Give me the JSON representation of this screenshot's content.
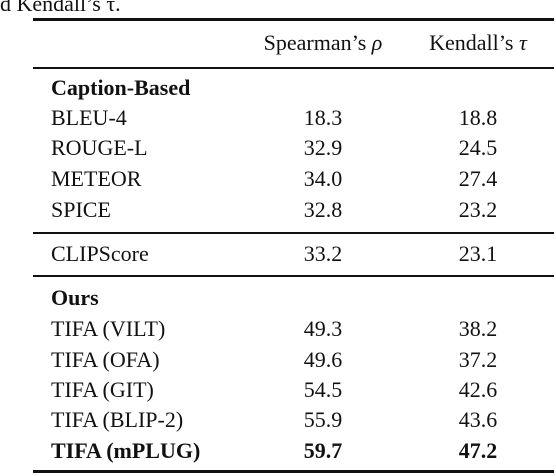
{
  "caption_fragment": "d Kendall’s τ.",
  "table": {
    "header": {
      "spearman_label": "Spearman’s",
      "spearman_symbol": "ρ",
      "kendall_label": "Kendall’s",
      "kendall_symbol": "τ"
    },
    "groups": [
      {
        "title": "Caption-Based",
        "rows": [
          {
            "name": "BLEU-4",
            "spearman": "18.3",
            "kendall": "18.8"
          },
          {
            "name": "ROUGE-L",
            "spearman": "32.9",
            "kendall": "24.5"
          },
          {
            "name": "METEOR",
            "spearman": "34.0",
            "kendall": "27.4"
          },
          {
            "name": "SPICE",
            "spearman": "32.8",
            "kendall": "23.2"
          }
        ]
      },
      {
        "title": "",
        "rows": [
          {
            "name": "CLIPScore",
            "spearman": "33.2",
            "kendall": "23.1"
          }
        ]
      },
      {
        "title": "Ours",
        "rows": [
          {
            "name": "TIFA (VILT)",
            "spearman": "49.3",
            "kendall": "38.2"
          },
          {
            "name": "TIFA (OFA)",
            "spearman": "49.6",
            "kendall": "37.2"
          },
          {
            "name": "TIFA (GIT)",
            "spearman": "54.5",
            "kendall": "42.6"
          },
          {
            "name": "TIFA (BLIP-2)",
            "spearman": "55.9",
            "kendall": "43.6"
          },
          {
            "name": "TIFA (mPLUG)",
            "spearman": "59.7",
            "kendall": "47.2"
          }
        ]
      }
    ]
  }
}
